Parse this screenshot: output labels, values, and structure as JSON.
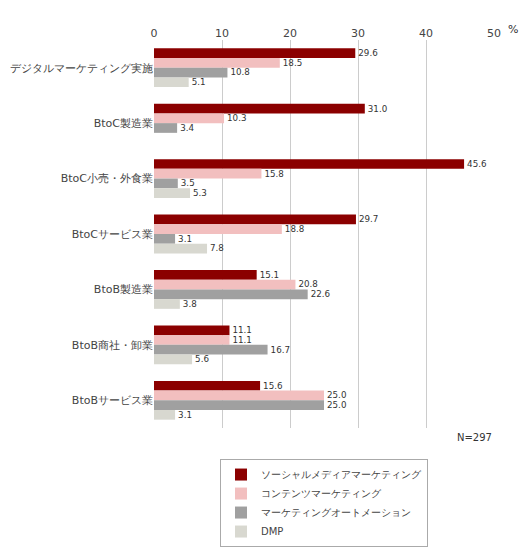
{
  "chart_data": {
    "type": "bar",
    "orientation": "horizontal",
    "categories": [
      "デジタルマーケティング実施",
      "BtoC製造業",
      "BtoC小売・外食業",
      "BtoCサービス業",
      "BtoB製造業",
      "BtoB商社・卸業",
      "BtoBサービス業"
    ],
    "series": [
      {
        "name": "ソーシャルメディアマーケティング",
        "color": "#8B0000",
        "values": [
          29.6,
          31.0,
          45.6,
          29.7,
          15.1,
          11.1,
          15.6
        ],
        "value_labels": [
          "29.6",
          "31.0",
          "45.6",
          "29.7",
          "15.1",
          "11.1",
          "15.6"
        ]
      },
      {
        "name": "コンテンツマーケティング",
        "color": "#F2BFBF",
        "values": [
          18.5,
          10.3,
          15.8,
          18.8,
          20.8,
          11.1,
          25.0
        ],
        "value_labels": [
          "18.5",
          "10.3",
          "15.8",
          "18.8",
          "20.8",
          "11.1",
          "25.0"
        ]
      },
      {
        "name": "マーケティングオートメーション",
        "color": "#A0A0A0",
        "values": [
          10.8,
          3.4,
          3.5,
          3.1,
          22.6,
          16.7,
          25.0
        ],
        "value_labels": [
          "10.8",
          "3.4",
          "3.5",
          "3.1",
          "22.6",
          "16.7",
          "25.0"
        ]
      },
      {
        "name": "DMP",
        "color": "#D8D8D0",
        "values": [
          5.1,
          0.0,
          5.3,
          7.8,
          3.8,
          5.6,
          3.1
        ],
        "value_labels": [
          "5.1",
          null,
          "5.3",
          "7.8",
          "3.8",
          "5.6",
          "3.1"
        ]
      }
    ],
    "xlim": [
      0,
      50
    ],
    "xticks": [
      0,
      10,
      20,
      30,
      40,
      50
    ],
    "grid": true,
    "data_labels": true,
    "legend": "bottom",
    "annotations": [
      "%",
      "N=297"
    ]
  }
}
